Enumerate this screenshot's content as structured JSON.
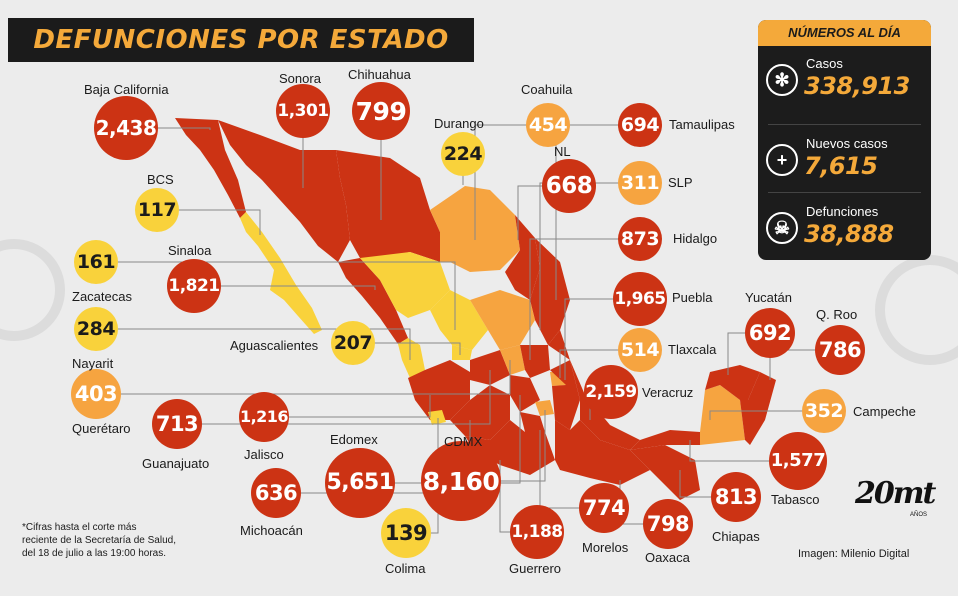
{
  "title": "DEFUNCIONES POR ESTADO",
  "panel": {
    "heading": "NÚMEROS AL DÍA",
    "cases_label": "Casos",
    "cases_value": "338,913",
    "new_label": "Nuevos casos",
    "new_value": "7,615",
    "deaths_label": "Defunciones",
    "deaths_value": "38,888"
  },
  "colors": {
    "red": "#cc3314",
    "orange": "#f6a440",
    "yellow": "#f9d23b",
    "dark": "#1c1c1c",
    "accent": "#f4a93a"
  },
  "states": [
    {
      "name": "Baja California",
      "value": "2,438",
      "level": "red"
    },
    {
      "name": "Sonora",
      "value": "1,301",
      "level": "red"
    },
    {
      "name": "Chihuahua",
      "value": "799",
      "level": "red"
    },
    {
      "name": "Durango",
      "value": "224",
      "level": "yellow"
    },
    {
      "name": "Coahuila",
      "value": "454",
      "level": "orange"
    },
    {
      "name": "NL",
      "value": "668",
      "level": "red"
    },
    {
      "name": "Tamaulipas",
      "value": "694",
      "level": "red"
    },
    {
      "name": "SLP",
      "value": "311",
      "level": "orange"
    },
    {
      "name": "Hidalgo",
      "value": "873",
      "level": "red"
    },
    {
      "name": "Puebla",
      "value": "1,965",
      "level": "red"
    },
    {
      "name": "Tlaxcala",
      "value": "514",
      "level": "orange"
    },
    {
      "name": "Veracruz",
      "value": "2,159",
      "level": "red"
    },
    {
      "name": "Yucatán",
      "value": "692",
      "level": "red"
    },
    {
      "name": "Q. Roo",
      "value": "786",
      "level": "red"
    },
    {
      "name": "Campeche",
      "value": "352",
      "level": "orange"
    },
    {
      "name": "Tabasco",
      "value": "1,577",
      "level": "red"
    },
    {
      "name": "Chiapas",
      "value": "813",
      "level": "red"
    },
    {
      "name": "Oaxaca",
      "value": "798",
      "level": "red"
    },
    {
      "name": "Morelos",
      "value": "774",
      "level": "red"
    },
    {
      "name": "Guerrero",
      "value": "1,188",
      "level": "red"
    },
    {
      "name": "CDMX",
      "value": "8,160",
      "level": "red"
    },
    {
      "name": "Edomex",
      "value": "5,651",
      "level": "red"
    },
    {
      "name": "Colima",
      "value": "139",
      "level": "yellow"
    },
    {
      "name": "Michoacán",
      "value": "636",
      "level": "red"
    },
    {
      "name": "Jalisco",
      "value": "1,216",
      "level": "red"
    },
    {
      "name": "Guanajuato",
      "value": "713",
      "level": "red"
    },
    {
      "name": "Querétaro",
      "value": "403",
      "level": "orange"
    },
    {
      "name": "Nayarit",
      "value": "284",
      "level": "yellow"
    },
    {
      "name": "Zacatecas",
      "value": "161",
      "level": "yellow"
    },
    {
      "name": "Aguascalientes",
      "value": "207",
      "level": "yellow"
    },
    {
      "name": "Sinaloa",
      "value": "1,821",
      "level": "red"
    },
    {
      "name": "BCS",
      "value": "117",
      "level": "yellow"
    }
  ],
  "footnote": [
    "*Cifras hasta el corte más",
    "reciente de la Secretaría de Salud,",
    "del 18 de julio a las 19:00 horas."
  ],
  "credit": "Imagen: Milenio Digital",
  "logo": {
    "main": "20mt",
    "sub": "AÑOS"
  }
}
